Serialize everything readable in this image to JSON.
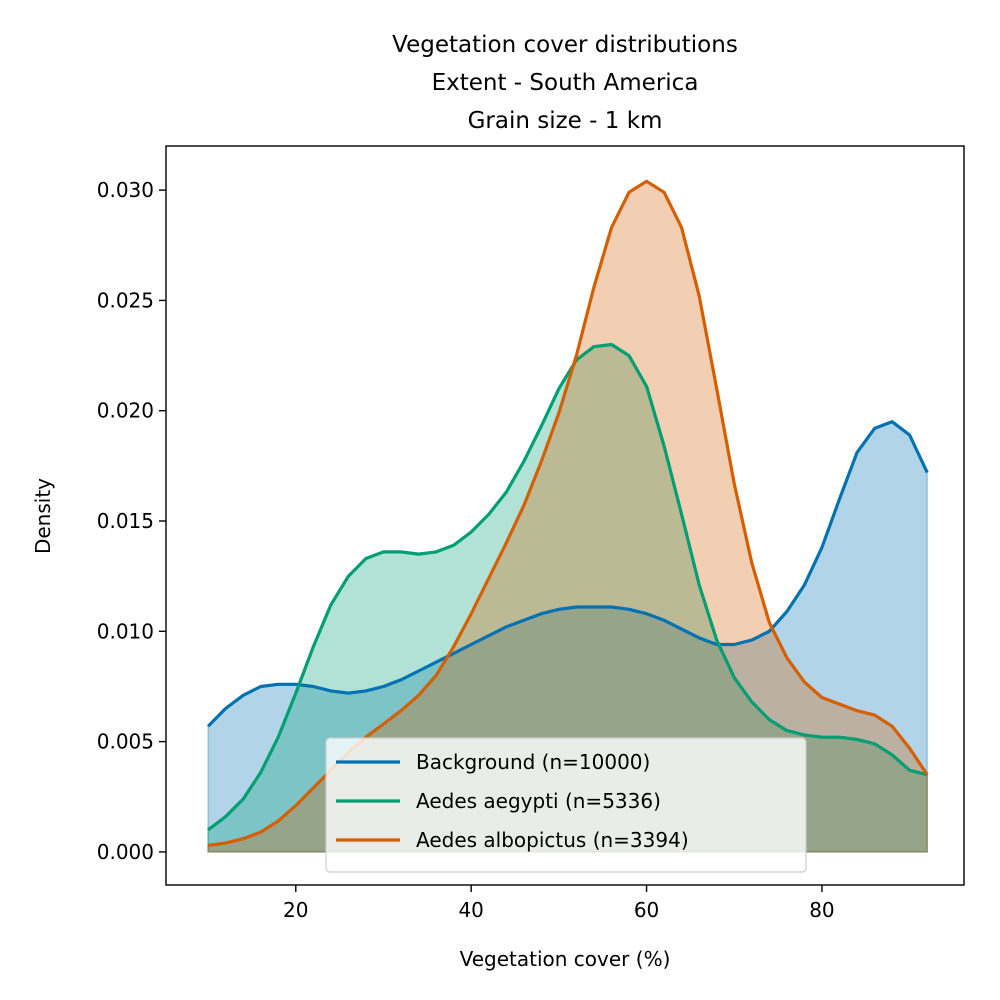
{
  "chart_data": {
    "type": "area",
    "title_lines": [
      "Vegetation cover distributions",
      "Extent - South America",
      "Grain size - 1 km"
    ],
    "xlabel": "Vegetation cover (%)",
    "ylabel": "Density",
    "xlim": [
      5.2,
      96.2
    ],
    "ylim": [
      -0.0015,
      0.032
    ],
    "xticks": [
      20,
      40,
      60,
      80
    ],
    "yticks": [
      0.0,
      0.005,
      0.01,
      0.015,
      0.02,
      0.025,
      0.03
    ],
    "ytick_labels": [
      "0.000",
      "0.005",
      "0.010",
      "0.015",
      "0.020",
      "0.025",
      "0.030"
    ],
    "grid": false,
    "legend_position": "lower center",
    "series": [
      {
        "name": "Background (n=10000)",
        "color": "#0072B2",
        "x": [
          10,
          12,
          14,
          16,
          18,
          20,
          22,
          24,
          26,
          28,
          30,
          32,
          34,
          36,
          38,
          40,
          42,
          44,
          46,
          48,
          50,
          52,
          54,
          56,
          58,
          60,
          62,
          64,
          66,
          68,
          70,
          72,
          74,
          76,
          78,
          80,
          82,
          84,
          86,
          88,
          90,
          92
        ],
        "values": [
          0.0057,
          0.0065,
          0.0071,
          0.0075,
          0.0076,
          0.0076,
          0.0075,
          0.0073,
          0.0072,
          0.0073,
          0.0075,
          0.0078,
          0.0082,
          0.0086,
          0.009,
          0.0094,
          0.0098,
          0.0102,
          0.0105,
          0.0108,
          0.011,
          0.0111,
          0.0111,
          0.0111,
          0.011,
          0.0108,
          0.0105,
          0.0101,
          0.0097,
          0.0094,
          0.0094,
          0.0096,
          0.01,
          0.0109,
          0.0121,
          0.0138,
          0.016,
          0.0181,
          0.0192,
          0.0195,
          0.0189,
          0.0172
        ]
      },
      {
        "name": "Aedes aegypti (n=5336)",
        "color": "#009E73",
        "x": [
          10,
          12,
          14,
          16,
          18,
          20,
          22,
          24,
          26,
          28,
          30,
          32,
          34,
          36,
          38,
          40,
          42,
          44,
          46,
          48,
          50,
          52,
          54,
          56,
          58,
          60,
          62,
          64,
          66,
          68,
          70,
          72,
          74,
          76,
          78,
          80,
          82,
          84,
          86,
          88,
          90,
          92
        ],
        "values": [
          0.001,
          0.0016,
          0.0024,
          0.0036,
          0.0052,
          0.0072,
          0.0093,
          0.0112,
          0.0125,
          0.0133,
          0.0136,
          0.0136,
          0.0135,
          0.0136,
          0.0139,
          0.0145,
          0.0153,
          0.0163,
          0.0177,
          0.0193,
          0.021,
          0.0223,
          0.0229,
          0.023,
          0.0225,
          0.0211,
          0.0184,
          0.0153,
          0.0121,
          0.0096,
          0.0079,
          0.0068,
          0.006,
          0.0055,
          0.0053,
          0.0052,
          0.0052,
          0.0051,
          0.0049,
          0.0044,
          0.0037,
          0.0035
        ]
      },
      {
        "name": "Aedes albopictus (n=3394)",
        "color": "#D55E00",
        "x": [
          10,
          12,
          14,
          16,
          18,
          20,
          22,
          24,
          26,
          28,
          30,
          32,
          34,
          36,
          38,
          40,
          42,
          44,
          46,
          48,
          50,
          52,
          54,
          56,
          58,
          60,
          62,
          64,
          66,
          68,
          70,
          72,
          74,
          76,
          78,
          80,
          82,
          84,
          86,
          88,
          90,
          92
        ],
        "values": [
          0.0003,
          0.0004,
          0.0006,
          0.0009,
          0.0014,
          0.0021,
          0.0029,
          0.0037,
          0.0045,
          0.0052,
          0.0058,
          0.0064,
          0.0071,
          0.008,
          0.0093,
          0.0108,
          0.0124,
          0.014,
          0.0157,
          0.0177,
          0.0199,
          0.0225,
          0.0256,
          0.0283,
          0.0299,
          0.0304,
          0.0299,
          0.0283,
          0.0252,
          0.021,
          0.0167,
          0.0131,
          0.0104,
          0.0088,
          0.0077,
          0.007,
          0.0067,
          0.0064,
          0.0062,
          0.0057,
          0.0047,
          0.0035
        ]
      }
    ]
  }
}
